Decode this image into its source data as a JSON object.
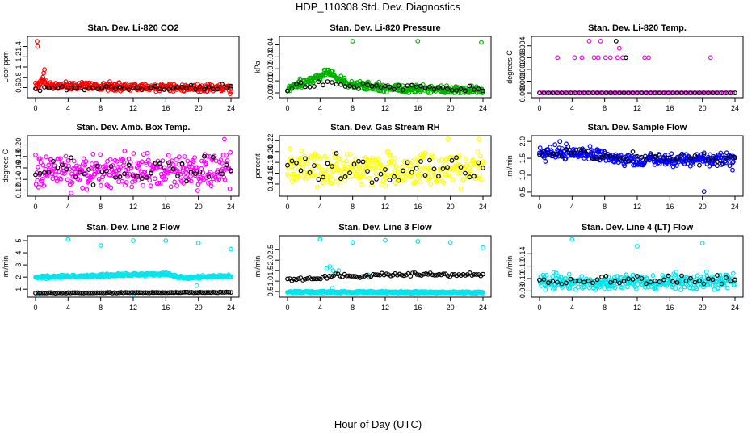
{
  "title": "HDP_110308  Std. Dev. Diagnostics",
  "xlabel": "Hour of Day (UTC)",
  "colors": {
    "axis": "#000000",
    "overlay": "#000000"
  },
  "chart_data": [
    {
      "type": "scatter",
      "title": "Stan. Dev. Li-820 CO2",
      "ylabel": "Licor ppm",
      "color": "#ff0000",
      "xlim": [
        0,
        24
      ],
      "ylim": [
        0.45,
        1.55
      ],
      "yticks": [
        0.6,
        0.8,
        1.0,
        1.2,
        1.4
      ],
      "ytick_labels": [
        "0.6",
        "0.8",
        "1",
        "1.2",
        "1.4"
      ],
      "xticks": [
        0,
        4,
        8,
        12,
        16,
        20,
        24
      ],
      "series": [
        {
          "name": "main",
          "gen": {
            "n": 330,
            "base": 0.6,
            "spread": 0.055,
            "trend": [
              [
                0,
                0.62
              ],
              [
                1,
                0.72
              ],
              [
                1.5,
                0.64
              ],
              [
                24,
                0.58
              ]
            ],
            "seed": 11
          },
          "extra": [
            [
              0.2,
              1.5
            ],
            [
              0.25,
              1.4
            ],
            [
              1.1,
              0.95
            ],
            [
              1.0,
              0.88
            ],
            [
              0.9,
              0.8
            ],
            [
              23.9,
              0.48
            ]
          ]
        },
        {
          "name": "overlay",
          "gen": {
            "n": 45,
            "base": 0.6,
            "spread": 0.04,
            "seed": 12
          }
        }
      ]
    },
    {
      "type": "scatter",
      "title": "Stan. Dev. Li-820 Pressure",
      "ylabel": "kPa",
      "color": "#00b000",
      "xlim": [
        0,
        24
      ],
      "ylim": [
        -0.002,
        0.045
      ],
      "yticks": [
        0.0,
        0.01,
        0.02,
        0.03,
        0.04
      ],
      "ytick_labels": [
        "0.00",
        "0.01",
        "0.02",
        "0.03",
        "0.04"
      ],
      "xticks": [
        0,
        4,
        8,
        12,
        16,
        20,
        24
      ],
      "series": [
        {
          "name": "main",
          "gen": {
            "n": 330,
            "spread": 0.0025,
            "trend": [
              [
                0,
                0.004
              ],
              [
                2,
                0.009
              ],
              [
                4,
                0.014
              ],
              [
                5,
                0.018
              ],
              [
                6,
                0.013
              ],
              [
                8,
                0.006
              ],
              [
                12,
                0.004
              ],
              [
                24,
                0.002
              ]
            ],
            "seed": 21,
            "min": 0
          },
          "extra": [
            [
              8,
              0.043
            ],
            [
              16,
              0.043
            ],
            [
              23.8,
              0.042
            ]
          ]
        },
        {
          "name": "overlay",
          "gen": {
            "n": 45,
            "spread": 0.002,
            "trend": [
              [
                0,
                0.004
              ],
              [
                5,
                0.009
              ],
              [
                8,
                0.006
              ],
              [
                24,
                0.003
              ]
            ],
            "seed": 22,
            "min": 0
          }
        }
      ]
    },
    {
      "type": "scatter",
      "title": "Stan. Dev. Li-820 Temp.",
      "ylabel": "degrees C",
      "color": "#ff00ff",
      "xlim": [
        0,
        24
      ],
      "ylim": [
        -0.0002,
        0.0046
      ],
      "yticks": [
        0.0,
        0.001,
        0.002,
        0.003,
        0.004
      ],
      "ytick_labels": [
        "0.000",
        "0.001",
        "0.002",
        "0.003",
        "0.004"
      ],
      "xticks": [
        0,
        4,
        8,
        12,
        16,
        20,
        24
      ],
      "series": [
        {
          "name": "main",
          "gen": {
            "n": 90,
            "spread": 0,
            "base": 0,
            "seed": 31
          },
          "extra": [
            [
              2.2,
              0.003
            ],
            [
              4.3,
              0.003
            ],
            [
              5.2,
              0.003
            ],
            [
              6.1,
              0.0044
            ],
            [
              6.7,
              0.003
            ],
            [
              7.2,
              0.003
            ],
            [
              7.5,
              0.0044
            ],
            [
              8.1,
              0.003
            ],
            [
              8.7,
              0.003
            ],
            [
              9.6,
              0.003
            ],
            [
              9.8,
              0.0038
            ],
            [
              10.2,
              0.003
            ],
            [
              12.9,
              0.003
            ],
            [
              13.4,
              0.003
            ],
            [
              21.0,
              0.003
            ],
            [
              10.0,
              0.0
            ]
          ]
        },
        {
          "name": "overlay",
          "gen": {
            "n": 45,
            "spread": 0,
            "base": 0,
            "seed": 32
          },
          "extra": [
            [
              9.4,
              0.0044
            ],
            [
              10.6,
              0.003
            ]
          ]
        }
      ]
    },
    {
      "type": "scatter",
      "title": "Stan. Dev. Amb. Box Temp.",
      "ylabel": "degrees C",
      "color": "#ff00ff",
      "xlim": [
        0,
        24
      ],
      "ylim": [
        0.115,
        0.212
      ],
      "yticks": [
        0.12,
        0.14,
        0.16,
        0.18,
        0.2
      ],
      "ytick_labels": [
        "0.12",
        "0.14",
        "0.16",
        "0.18",
        "0.20"
      ],
      "xticks": [
        0,
        4,
        8,
        12,
        16,
        20,
        24
      ],
      "series": [
        {
          "name": "main",
          "gen": {
            "n": 330,
            "base": 0.155,
            "spread": 0.02,
            "seed": 41
          },
          "extra": [
            [
              23.2,
              0.21
            ]
          ]
        },
        {
          "name": "overlay",
          "gen": {
            "n": 45,
            "base": 0.155,
            "spread": 0.016,
            "seed": 42
          }
        }
      ]
    },
    {
      "type": "scatter",
      "title": "Stan. Dev. Gas Stream RH",
      "ylabel": "percent",
      "color": "#ffff00",
      "xlim": [
        0,
        24
      ],
      "ylim": [
        0.122,
        0.225
      ],
      "yticks": [
        0.14,
        0.16,
        0.18,
        0.2,
        0.22
      ],
      "ytick_labels": [
        "0.14",
        "0.16",
        "0.18",
        "0.20",
        "0.22"
      ],
      "xticks": [
        0,
        4,
        8,
        12,
        16,
        20,
        24
      ],
      "series": [
        {
          "name": "main",
          "gen": {
            "n": 330,
            "base": 0.168,
            "spread": 0.022,
            "seed": 51
          },
          "extra": [
            [
              19.7,
              0.223
            ],
            [
              23.5,
              0.223
            ]
          ]
        },
        {
          "name": "overlay",
          "gen": {
            "n": 45,
            "base": 0.165,
            "spread": 0.018,
            "seed": 52
          }
        }
      ]
    },
    {
      "type": "scatter",
      "title": "Stan. Dev. Sample Flow",
      "ylabel": "ml/min",
      "color": "#0000ff",
      "xlim": [
        0,
        24
      ],
      "ylim": [
        0.45,
        2.1
      ],
      "yticks": [
        0.5,
        1.0,
        1.5,
        2.0
      ],
      "ytick_labels": [
        "0.5",
        "1.0",
        "1.5",
        "2.0"
      ],
      "xticks": [
        0,
        4,
        8,
        12,
        16,
        20,
        24
      ],
      "series": [
        {
          "name": "main",
          "gen": {
            "n": 330,
            "spread": 0.14,
            "trend": [
              [
                0,
                1.62
              ],
              [
                4,
                1.7
              ],
              [
                8,
                1.55
              ],
              [
                12,
                1.45
              ],
              [
                16,
                1.45
              ],
              [
                24,
                1.5
              ]
            ],
            "seed": 61
          },
          "extra": [
            [
              20.2,
              0.52
            ],
            [
              2.5,
              2.0
            ],
            [
              23.7,
              1.15
            ]
          ]
        },
        {
          "name": "overlay",
          "gen": {
            "n": 45,
            "spread": 0.1,
            "trend": [
              [
                0,
                1.62
              ],
              [
                4,
                1.7
              ],
              [
                8,
                1.55
              ],
              [
                24,
                1.45
              ]
            ],
            "seed": 62
          }
        }
      ]
    },
    {
      "type": "scatter",
      "title": "Stan. Dev. Line 2 Flow",
      "ylabel": "ml/min",
      "color": "#00e5ee",
      "xlim": [
        0,
        24
      ],
      "ylim": [
        0.55,
        5.2
      ],
      "yticks": [
        1,
        2,
        3,
        4,
        5
      ],
      "ytick_labels": [
        "1",
        "2",
        "3",
        "4",
        "5"
      ],
      "xticks": [
        0,
        4,
        8,
        12,
        16,
        20,
        24
      ],
      "series": [
        {
          "name": "main",
          "gen": {
            "n": 330,
            "spread": 0.08,
            "trend": [
              [
                0,
                2.0
              ],
              [
                12,
                2.2
              ],
              [
                16,
                2.25
              ],
              [
                18,
                1.95
              ],
              [
                24,
                2.1
              ]
            ],
            "seed": 71,
            "band": 0.25
          },
          "extra": [
            [
              4,
              5.1
            ],
            [
              8,
              4.6
            ],
            [
              12,
              5.0
            ],
            [
              16,
              5.0
            ],
            [
              20,
              4.8
            ],
            [
              24,
              4.3
            ],
            [
              19.8,
              1.3
            ],
            [
              0.3,
              0.62
            ],
            [
              12.1,
              0.6
            ]
          ]
        },
        {
          "name": "overlay",
          "gen": {
            "n": 90,
            "spread": 0.02,
            "trend": [
              [
                0,
                0.7
              ],
              [
                24,
                0.75
              ]
            ],
            "seed": 72,
            "band": 0.55
          }
        }
      ]
    },
    {
      "type": "scatter",
      "title": "Stan. Dev. Line 3 Flow",
      "ylabel": "ml/min",
      "color": "#00e5ee",
      "xlim": [
        0,
        24
      ],
      "ylim": [
        0.35,
        3.05
      ],
      "yticks": [
        0.5,
        1.0,
        1.5,
        2.0,
        2.5
      ],
      "ytick_labels": [
        "0.5",
        "1.0",
        "1.5",
        "2.0",
        "2.5"
      ],
      "xticks": [
        0,
        4,
        8,
        12,
        16,
        20,
        24
      ],
      "series": [
        {
          "name": "main",
          "gen": {
            "n": 330,
            "spread": 0.03,
            "trend": [
              [
                0,
                0.48
              ],
              [
                24,
                0.46
              ]
            ],
            "seed": 81,
            "band": 0.1
          },
          "extra": [
            [
              4,
              3.0
            ],
            [
              8,
              2.85
            ],
            [
              12,
              2.95
            ],
            [
              16,
              2.9
            ],
            [
              20,
              2.85
            ],
            [
              24,
              2.6
            ],
            [
              4.8,
              1.6
            ],
            [
              5.2,
              1.7
            ],
            [
              5.6,
              1.5
            ],
            [
              6.3,
              1.5
            ],
            [
              9.9,
              1.3
            ],
            [
              5.5,
              0.65
            ]
          ]
        },
        {
          "name": "overlay",
          "gen": {
            "n": 90,
            "spread": 0.06,
            "trend": [
              [
                0,
                1.08
              ],
              [
                4,
                1.15
              ],
              [
                6,
                1.3
              ],
              [
                9,
                1.2
              ],
              [
                11,
                1.3
              ],
              [
                16,
                1.3
              ],
              [
                24,
                1.3
              ]
            ],
            "seed": 82
          }
        }
      ]
    },
    {
      "type": "scatter",
      "title": "Stan. Dev. Line 4 (LT) Flow",
      "ylabel": "ml/min",
      "color": "#00e5ee",
      "xlim": [
        0,
        24
      ],
      "ylim": [
        0.074,
        0.165
      ],
      "yticks": [
        0.08,
        0.1,
        0.12,
        0.14
      ],
      "ytick_labels": [
        "0.08",
        "0.10",
        "0.12",
        "0.14"
      ],
      "xticks": [
        0,
        4,
        8,
        12,
        16,
        20,
        24
      ],
      "series": [
        {
          "name": "main",
          "gen": {
            "n": 330,
            "base": 0.095,
            "spread": 0.0085,
            "seed": 91
          },
          "extra": [
            [
              4,
              0.163
            ],
            [
              12,
              0.152
            ],
            [
              20,
              0.157
            ]
          ]
        },
        {
          "name": "overlay",
          "gen": {
            "n": 45,
            "base": 0.096,
            "spread": 0.006,
            "seed": 92
          }
        }
      ]
    }
  ]
}
